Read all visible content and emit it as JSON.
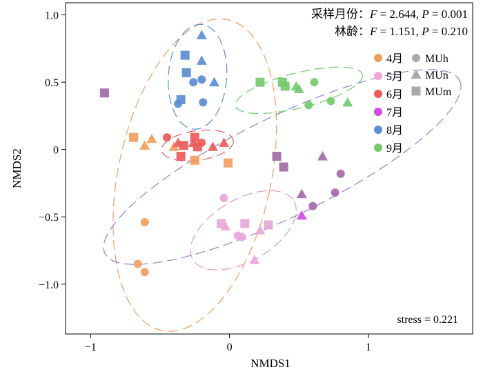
{
  "chart_data": {
    "type": "scatter",
    "xlabel": "NMDS1",
    "ylabel": "NMDS2",
    "xlim": [
      -1.18,
      1.75
    ],
    "ylim": [
      -1.37,
      1.09
    ],
    "xticks": [
      {
        "value": -1,
        "label": "−1"
      },
      {
        "value": 0,
        "label": "0"
      },
      {
        "value": 1,
        "label": "1"
      }
    ],
    "yticks": [
      {
        "value": 1.0,
        "label": "1.0"
      },
      {
        "value": 0.5,
        "label": "0.5"
      },
      {
        "value": 0,
        "label": "0"
      },
      {
        "value": -0.5,
        "label": "−0.5"
      },
      {
        "value": -1.0,
        "label": "−1.0"
      }
    ],
    "annotations": {
      "line1": {
        "prefix": "采样月份：",
        "F": "2.644",
        "P": "0.001"
      },
      "line2": {
        "prefix": "林龄：",
        "F": "1.151",
        "P": "0.210"
      },
      "stress": "stress = 0.221"
    },
    "legend_months": [
      {
        "label": "4月",
        "color": "#F59D5E"
      },
      {
        "label": "5月",
        "color": "#EAA8D8"
      },
      {
        "label": "6月",
        "color": "#EE5A5A"
      },
      {
        "label": "7月",
        "color": "#D44BE6"
      },
      {
        "label": "8月",
        "color": "#5C8DD4"
      },
      {
        "label": "9月",
        "color": "#74C96E"
      }
    ],
    "legend_types": [
      {
        "label": "MUh",
        "shape": "circle"
      },
      {
        "label": "MUn",
        "shape": "triangle"
      },
      {
        "label": "MUm",
        "shape": "square"
      }
    ],
    "groups": [
      {
        "month": "4月",
        "color": "#F59D5E",
        "ellipse": {
          "cx": -0.25,
          "cy": -0.19,
          "rx": 0.55,
          "ry": 1.18,
          "angle_deg": 12,
          "color": "#F59D5E"
        },
        "points": [
          {
            "x": -0.69,
            "y": 0.09,
            "type": "MUm"
          },
          {
            "x": -0.25,
            "y": -0.08,
            "type": "MUm"
          },
          {
            "x": -0.01,
            "y": -0.1,
            "type": "MUm"
          },
          {
            "x": -0.61,
            "y": 0.03,
            "type": "MUn"
          },
          {
            "x": -0.56,
            "y": 0.08,
            "type": "MUn"
          },
          {
            "x": -0.4,
            "y": 0.02,
            "type": "MUn"
          },
          {
            "x": -0.61,
            "y": -0.54,
            "type": "MUh"
          },
          {
            "x": -0.66,
            "y": -0.85,
            "type": "MUh"
          },
          {
            "x": -0.61,
            "y": -0.91,
            "type": "MUh"
          }
        ]
      },
      {
        "month": "5月",
        "color": "#EAA8D8",
        "ellipse": {
          "cx": 0.1,
          "cy": -0.6,
          "rx": 0.42,
          "ry": 0.23,
          "angle_deg": -30,
          "color": "#D99ACC"
        },
        "points": [
          {
            "x": -0.04,
            "y": -0.36,
            "type": "MUh"
          },
          {
            "x": 0.06,
            "y": -0.64,
            "type": "MUh"
          },
          {
            "x": 0.09,
            "y": -0.65,
            "type": "MUh"
          },
          {
            "x": -0.06,
            "y": -0.55,
            "type": "MUm"
          },
          {
            "x": 0.11,
            "y": -0.55,
            "type": "MUm"
          },
          {
            "x": 0.28,
            "y": -0.56,
            "type": "MUm"
          },
          {
            "x": -0.03,
            "y": -0.57,
            "type": "MUn"
          },
          {
            "x": 0.22,
            "y": -0.6,
            "type": "MUn"
          },
          {
            "x": 0.18,
            "y": -0.82,
            "type": "MUn"
          }
        ]
      },
      {
        "month": "6月",
        "color": "#EE5A5A",
        "ellipse": {
          "cx": -0.23,
          "cy": 0.03,
          "rx": 0.26,
          "ry": 0.11,
          "angle_deg": -8,
          "color": "#EE5A5A"
        },
        "points": [
          {
            "x": -0.45,
            "y": 0.09,
            "type": "MUh"
          },
          {
            "x": -0.2,
            "y": 0.05,
            "type": "MUh"
          },
          {
            "x": -0.33,
            "y": 0.03,
            "type": "MUm"
          },
          {
            "x": -0.25,
            "y": 0.09,
            "type": "MUm"
          },
          {
            "x": -0.23,
            "y": 0.02,
            "type": "MUm"
          },
          {
            "x": -0.35,
            "y": -0.05,
            "type": "MUm"
          },
          {
            "x": -0.37,
            "y": 0.05,
            "type": "MUn"
          },
          {
            "x": -0.26,
            "y": 0.05,
            "type": "MUn"
          },
          {
            "x": -0.12,
            "y": 0.02,
            "type": "MUn"
          },
          {
            "x": -0.04,
            "y": 0.05,
            "type": "MUn"
          }
        ]
      },
      {
        "month": "7月",
        "color": "#D44BE6",
        "ellipse": {
          "cx": 0.38,
          "cy": -0.13,
          "rx": 1.42,
          "ry": 0.37,
          "angle_deg": -26,
          "color": "#8F86C6"
        },
        "points": [
          {
            "x": -0.9,
            "y": 0.42,
            "type": "MUm",
            "color": "#A56CA9"
          },
          {
            "x": 0.34,
            "y": -0.05,
            "type": "MUm",
            "color": "#A56CA9"
          },
          {
            "x": 0.39,
            "y": -0.13,
            "type": "MUm",
            "color": "#A56CA9"
          },
          {
            "x": 0.67,
            "y": -0.05,
            "type": "MUn",
            "color": "#A56CA9"
          },
          {
            "x": 0.52,
            "y": -0.33,
            "type": "MUn",
            "color": "#A56CA9"
          },
          {
            "x": 0.8,
            "y": -0.18,
            "type": "MUh",
            "color": "#A56CA9"
          },
          {
            "x": 0.76,
            "y": -0.32,
            "type": "MUh",
            "color": "#A56CA9"
          },
          {
            "x": 0.6,
            "y": -0.42,
            "type": "MUh",
            "color": "#A56CA9"
          },
          {
            "x": 0.52,
            "y": -0.49,
            "type": "MUn",
            "color": "#D44BE6"
          }
        ]
      },
      {
        "month": "8月",
        "color": "#5C8DD4",
        "ellipse": {
          "cx": -0.23,
          "cy": 0.54,
          "rx": 0.21,
          "ry": 0.39,
          "angle_deg": 4,
          "color": "#5C8DD4"
        },
        "points": [
          {
            "x": -0.2,
            "y": 0.85,
            "type": "MUn"
          },
          {
            "x": -0.32,
            "y": 0.7,
            "type": "MUm"
          },
          {
            "x": -0.2,
            "y": 0.66,
            "type": "MUn"
          },
          {
            "x": -0.31,
            "y": 0.57,
            "type": "MUm"
          },
          {
            "x": -0.2,
            "y": 0.52,
            "type": "MUh"
          },
          {
            "x": -0.26,
            "y": 0.5,
            "type": "MUh"
          },
          {
            "x": -0.11,
            "y": 0.5,
            "type": "MUn"
          },
          {
            "x": -0.35,
            "y": 0.37,
            "type": "MUm"
          },
          {
            "x": -0.37,
            "y": 0.34,
            "type": "MUh"
          },
          {
            "x": -0.19,
            "y": 0.35,
            "type": "MUh"
          }
        ]
      },
      {
        "month": "9月",
        "color": "#74C96E",
        "ellipse": {
          "cx": 0.5,
          "cy": 0.44,
          "rx": 0.47,
          "ry": 0.13,
          "angle_deg": -14,
          "color": "#74C96E"
        },
        "points": [
          {
            "x": 0.22,
            "y": 0.5,
            "type": "MUm"
          },
          {
            "x": 0.38,
            "y": 0.5,
            "type": "MUm"
          },
          {
            "x": 0.4,
            "y": 0.47,
            "type": "MUm"
          },
          {
            "x": 0.48,
            "y": 0.47,
            "type": "MUn"
          },
          {
            "x": 0.5,
            "y": 0.45,
            "type": "MUn"
          },
          {
            "x": 0.61,
            "y": 0.5,
            "type": "MUh"
          },
          {
            "x": 0.57,
            "y": 0.33,
            "type": "MUh"
          },
          {
            "x": 0.73,
            "y": 0.36,
            "type": "MUh"
          },
          {
            "x": 0.85,
            "y": 0.35,
            "type": "MUn"
          }
        ]
      }
    ]
  }
}
